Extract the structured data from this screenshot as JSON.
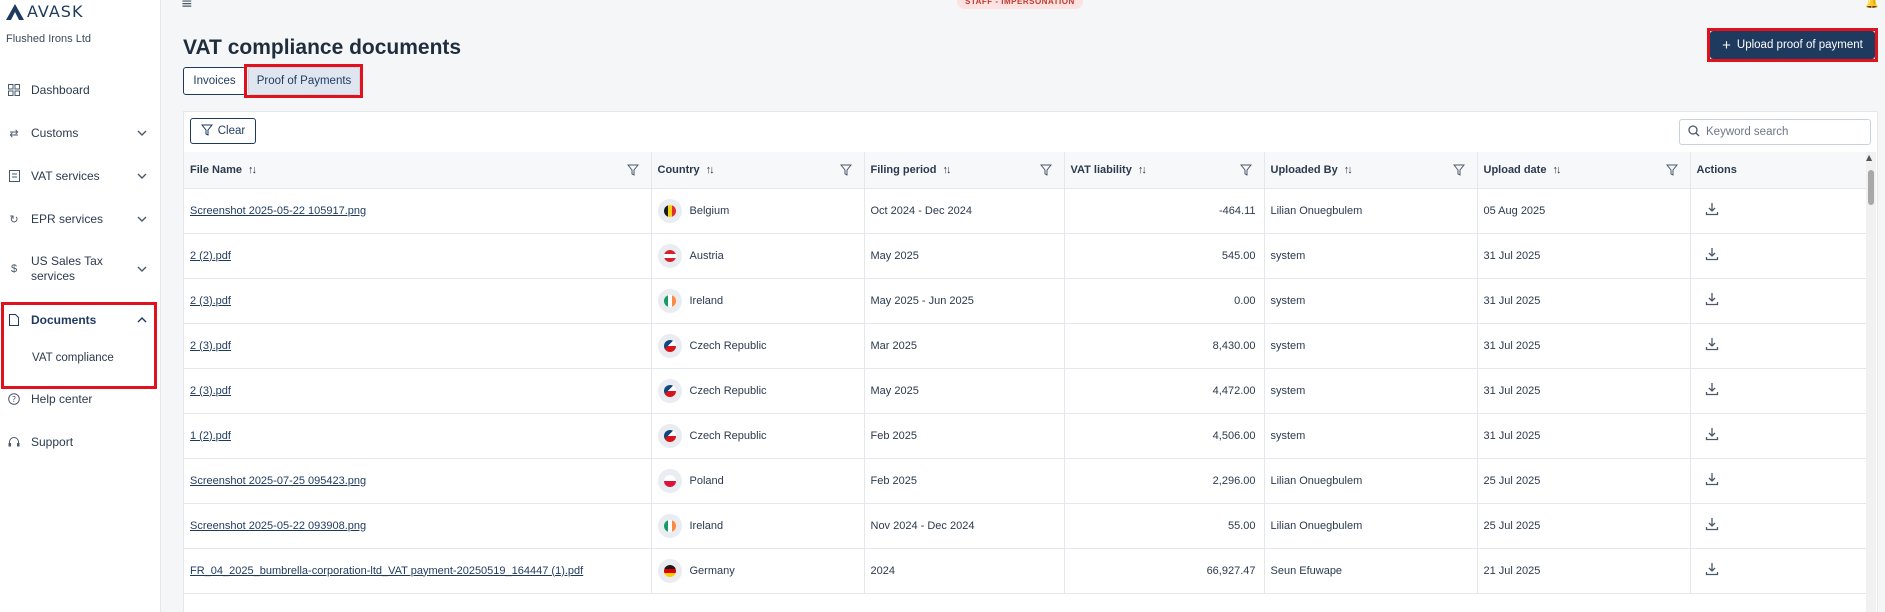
{
  "brand": {
    "name": "AVASK",
    "company": "Flushed Irons Ltd"
  },
  "topbar": {
    "badge": "STAFF - IMPERSONATION"
  },
  "sidebar": {
    "items": [
      {
        "label": "Dashboard",
        "icon": "grid-icon"
      },
      {
        "label": "Customs",
        "icon": "arrows-icon",
        "expandable": true
      },
      {
        "label": "VAT services",
        "icon": "document-icon",
        "expandable": true
      },
      {
        "label": "EPR services",
        "icon": "refresh-icon",
        "expandable": true
      },
      {
        "label": "US Sales Tax services",
        "icon": "dollar-icon",
        "expandable": true
      },
      {
        "label": "Documents",
        "icon": "file-icon",
        "expandable": true,
        "active": true
      },
      {
        "label": "Help center",
        "icon": "help-icon"
      },
      {
        "label": "Support",
        "icon": "headset-icon"
      }
    ],
    "sub_items": {
      "vat_compliance": "VAT compliance"
    }
  },
  "page": {
    "title": "VAT compliance documents",
    "upload_label": "Upload proof of payment",
    "tabs": [
      {
        "label": "Invoices",
        "selected": false
      },
      {
        "label": "Proof of Payments",
        "selected": true
      }
    ],
    "clear_label": "Clear",
    "search_placeholder": "Keyword search"
  },
  "table": {
    "columns": [
      "File Name",
      "Country",
      "Filing period",
      "VAT liability",
      "Uploaded By",
      "Upload date",
      "Actions"
    ],
    "rows": [
      {
        "file": "Screenshot 2025-05-22 105917.png",
        "country": "Belgium",
        "flag": "be",
        "period": "Oct 2024 - Dec 2024",
        "liability": "-464.11",
        "by": "Lilian Onuegbulem",
        "date": "05 Aug 2025"
      },
      {
        "file": "2 (2).pdf",
        "country": "Austria",
        "flag": "at",
        "period": "May 2025",
        "liability": "545.00",
        "by": "system",
        "date": "31 Jul 2025"
      },
      {
        "file": "2 (3).pdf",
        "country": "Ireland",
        "flag": "ie",
        "period": "May 2025 - Jun 2025",
        "liability": "0.00",
        "by": "system",
        "date": "31 Jul 2025"
      },
      {
        "file": "2 (3).pdf",
        "country": "Czech Republic",
        "flag": "cz",
        "period": "Mar 2025",
        "liability": "8,430.00",
        "by": "system",
        "date": "31 Jul 2025"
      },
      {
        "file": "2 (3).pdf",
        "country": "Czech Republic",
        "flag": "cz",
        "period": "May 2025",
        "liability": "4,472.00",
        "by": "system",
        "date": "31 Jul 2025"
      },
      {
        "file": "1 (2).pdf",
        "country": "Czech Republic",
        "flag": "cz",
        "period": "Feb 2025",
        "liability": "4,506.00",
        "by": "system",
        "date": "31 Jul 2025"
      },
      {
        "file": "Screenshot 2025-07-25 095423.png",
        "country": "Poland",
        "flag": "pl",
        "period": "Feb 2025",
        "liability": "2,296.00",
        "by": "Lilian Onuegbulem",
        "date": "25 Jul 2025"
      },
      {
        "file": "Screenshot 2025-05-22 093908.png",
        "country": "Ireland",
        "flag": "ie",
        "period": "Nov 2024 - Dec 2024",
        "liability": "55.00",
        "by": "Lilian Onuegbulem",
        "date": "25 Jul 2025"
      },
      {
        "file": "FR_04_2025_bumbrella-corporation-ltd_VAT payment-20250519_164447 (1).pdf",
        "country": "Germany",
        "flag": "de",
        "period": "2024",
        "liability": "66,927.47",
        "by": "Seun Efuwape",
        "date": "21 Jul 2025"
      }
    ]
  },
  "colors": {
    "primary": "#1e3a5f",
    "highlight": "#e0121e"
  }
}
